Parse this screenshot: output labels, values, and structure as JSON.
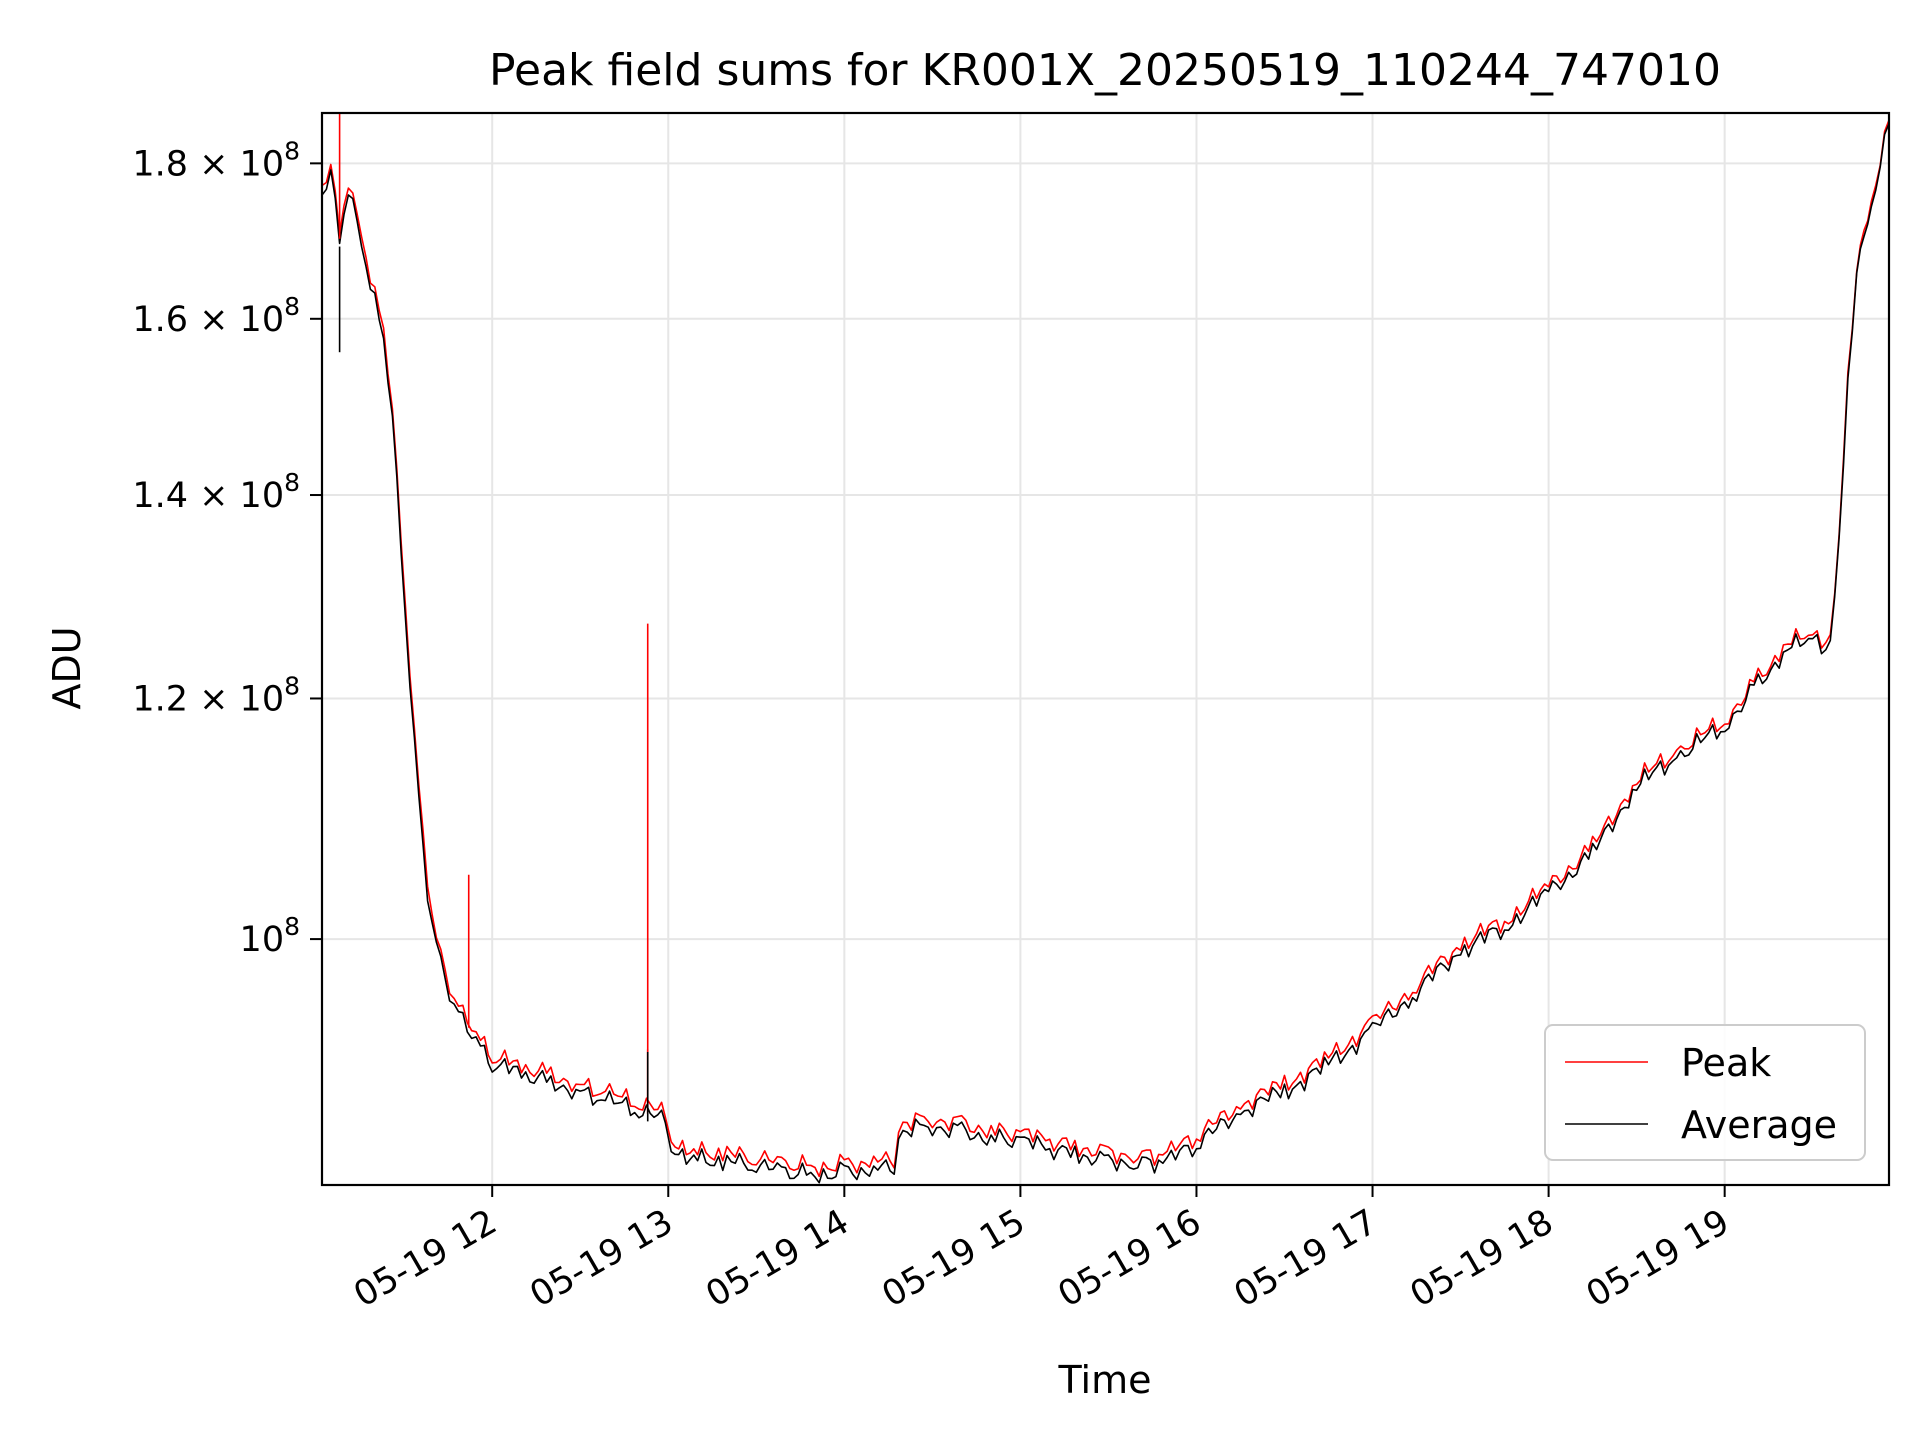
{
  "chart_data": {
    "type": "line",
    "title": "Peak field sums for KR001X_20250519_110244_747010",
    "xlabel": "Time",
    "ylabel": "ADU",
    "x_scale": "time",
    "y_scale": "log",
    "xlim": [
      "2025-05-19 11:02",
      "2025-05-19 19:56"
    ],
    "ylim": [
      83000000,
      187000000
    ],
    "x_ticks": [
      "2025-05-19 12:00",
      "2025-05-19 13:00",
      "2025-05-19 14:00",
      "2025-05-19 15:00",
      "2025-05-19 16:00",
      "2025-05-19 17:00",
      "2025-05-19 18:00",
      "2025-05-19 19:00"
    ],
    "x_tick_labels": [
      "05-19 12",
      "05-19 13",
      "05-19 14",
      "05-19 15",
      "05-19 16",
      "05-19 17",
      "05-19 18",
      "05-19 19"
    ],
    "y_ticks": [
      {
        "value": 180000000,
        "mant": "1.8",
        "exp": "8"
      },
      {
        "value": 160000000,
        "mant": "1.6",
        "exp": "8"
      },
      {
        "value": 140000000,
        "mant": "1.4",
        "exp": "8"
      },
      {
        "value": 120000000,
        "mant": "1.2",
        "exp": "8"
      },
      {
        "value": 100000000,
        "mant": "",
        "exp": "8"
      }
    ],
    "y_tick_base": "10",
    "y_tick_times": "×",
    "grid": true,
    "legend_position": "lower right",
    "x": [
      "2025-05-19 11:02",
      "2025-05-19 11:05",
      "2025-05-19 11:08",
      "2025-05-19 11:11",
      "2025-05-19 11:14",
      "2025-05-19 11:17",
      "2025-05-19 11:20",
      "2025-05-19 11:23",
      "2025-05-19 11:26",
      "2025-05-19 11:29",
      "2025-05-19 11:32",
      "2025-05-19 11:35",
      "2025-05-19 11:38",
      "2025-05-19 11:41",
      "2025-05-19 11:44",
      "2025-05-19 11:47",
      "2025-05-19 11:50",
      "2025-05-19 11:53",
      "2025-05-19 11:56",
      "2025-05-19 12:00",
      "2025-05-19 12:10",
      "2025-05-19 12:20",
      "2025-05-19 12:30",
      "2025-05-19 12:40",
      "2025-05-19 12:50",
      "2025-05-19 12:59",
      "2025-05-19 13:01",
      "2025-05-19 13:10",
      "2025-05-19 13:20",
      "2025-05-19 13:30",
      "2025-05-19 13:40",
      "2025-05-19 13:50",
      "2025-05-19 14:00",
      "2025-05-19 14:10",
      "2025-05-19 14:17",
      "2025-05-19 14:20",
      "2025-05-19 14:30",
      "2025-05-19 14:40",
      "2025-05-19 14:50",
      "2025-05-19 15:00",
      "2025-05-19 15:10",
      "2025-05-19 15:20",
      "2025-05-19 15:30",
      "2025-05-19 15:40",
      "2025-05-19 15:50",
      "2025-05-19 16:00",
      "2025-05-19 16:15",
      "2025-05-19 16:30",
      "2025-05-19 16:45",
      "2025-05-19 17:00",
      "2025-05-19 17:15",
      "2025-05-19 17:30",
      "2025-05-19 17:45",
      "2025-05-19 18:00",
      "2025-05-19 18:15",
      "2025-05-19 18:30",
      "2025-05-19 18:45",
      "2025-05-19 19:00",
      "2025-05-19 19:10",
      "2025-05-19 19:20",
      "2025-05-19 19:30",
      "2025-05-19 19:33",
      "2025-05-19 19:36",
      "2025-05-19 19:39",
      "2025-05-19 19:42",
      "2025-05-19 19:45",
      "2025-05-19 19:50",
      "2025-05-19 19:56"
    ],
    "series": [
      {
        "name": "Peak",
        "color": "#ff0000",
        "values": [
          177000000,
          180000000,
          170000000,
          178000000,
          173000000,
          168000000,
          163000000,
          158000000,
          150000000,
          135000000,
          123000000,
          112000000,
          104000000,
          100000000,
          97500000,
          96000000,
          94500000,
          93500000,
          92500000,
          91500000,
          90800000,
          90300000,
          89500000,
          88900000,
          88300000,
          87600000,
          85900000,
          85100000,
          85000000,
          84700000,
          84300000,
          84200000,
          84300000,
          84500000,
          84600000,
          87100000,
          87300000,
          87000000,
          86500000,
          86300000,
          85800000,
          85400000,
          85100000,
          84900000,
          85000000,
          86100000,
          88200000,
          89600000,
          91400000,
          93800000,
          96600000,
          99600000,
          101400000,
          104100000,
          107200000,
          112800000,
          115500000,
          118000000,
          121500000,
          124600000,
          126700000,
          124500000,
          126500000,
          135000000,
          153000000,
          166000000,
          175000000,
          186000000
        ]
      },
      {
        "name": "Average",
        "color": "#000000",
        "values": [
          176000000,
          179000000,
          169000000,
          177000000,
          172000000,
          167000000,
          162000000,
          157000000,
          149000000,
          134000000,
          122000000,
          111000000,
          103000000,
          99500000,
          97000000,
          95500000,
          94000000,
          93000000,
          92000000,
          91000000,
          90300000,
          89800000,
          89000000,
          88400000,
          87800000,
          87100000,
          85400000,
          84600000,
          84500000,
          84200000,
          83800000,
          83700000,
          83800000,
          84000000,
          84100000,
          86600000,
          86800000,
          86500000,
          86000000,
          85800000,
          85300000,
          84900000,
          84600000,
          84400000,
          84500000,
          85600000,
          87700000,
          89100000,
          90900000,
          93300000,
          96100000,
          99100000,
          100900000,
          103600000,
          106700000,
          112300000,
          115000000,
          117500000,
          121000000,
          124100000,
          126200000,
          124000000,
          126000000,
          134500000,
          152500000,
          165500000,
          174500000,
          185500000
        ]
      }
    ],
    "spikes": [
      {
        "series": "Peak",
        "x": "2025-05-19 11:08",
        "value": 190000000
      },
      {
        "series": "Average",
        "x": "2025-05-19 11:08",
        "value": 156000000
      },
      {
        "series": "Peak",
        "x": "2025-05-19 11:52",
        "value": 105000000
      },
      {
        "series": "Peak",
        "x": "2025-05-19 12:53",
        "value": 127000000
      },
      {
        "series": "Peak",
        "x": "2025-05-19 12:53",
        "value": 92000000
      },
      {
        "series": "Average",
        "x": "2025-05-19 12:53",
        "value": 91800000
      }
    ]
  }
}
